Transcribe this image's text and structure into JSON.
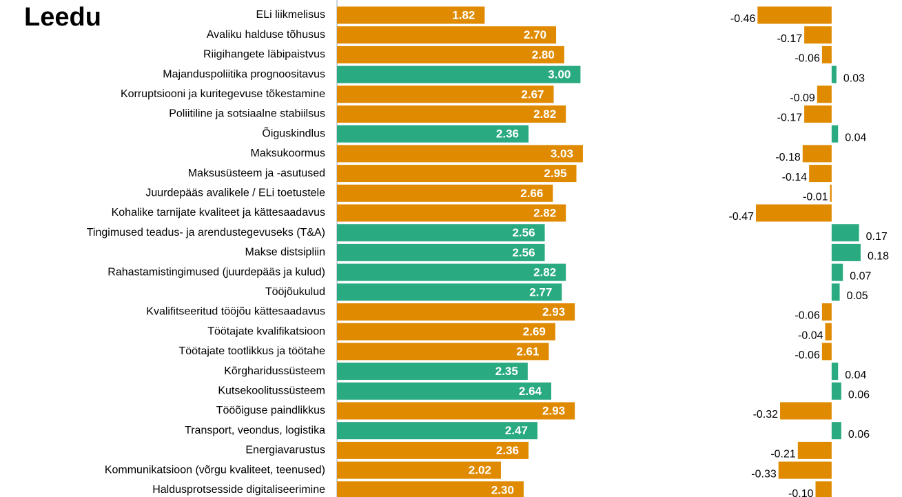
{
  "chart_data": [
    {
      "type": "barh",
      "title": "Leedu",
      "categories": [
        "ELi liikmelisus",
        "Avaliku halduse tõhusus",
        "Riigihangete läbipaistvus",
        "Majanduspoliitika prognoositavus",
        "Korruptsiooni ja kuritegevuse tõkestamine",
        "Poliitiline ja sotsiaalne stabiilsus",
        "Õiguskindlus",
        "Maksukoormus",
        "Maksusüsteem ja -asutused",
        "Juurdepääs avalikele / ELi toetustele",
        "Kohalike tarnijate kvaliteet ja kättesaadavus",
        "Tingimused teadus- ja arendustegevuseks (T&A)",
        "Makse distsipliin",
        "Rahastamistingimused (juurdepääs ja kulud)",
        "Tööjõukulud",
        "Kvalifitseeritud tööjõu kättesaadavus",
        "Töötajate kvalifikatsioon",
        "Töötajate tootlikkus ja töötahe",
        "Kõrgharidussüsteem",
        "Kutsekoolitussüsteem",
        "Tööõiguse paindlikkus",
        "Transport, veondus, logistika",
        "Energiavarustus",
        "Kommunikatsioon (võrgu kvaliteet, teenused)",
        "Haldusprotsesside digitaliseerimine"
      ],
      "values": [
        1.82,
        2.7,
        2.8,
        3.0,
        2.67,
        2.82,
        2.36,
        3.03,
        2.95,
        2.66,
        2.82,
        2.56,
        2.56,
        2.82,
        2.77,
        2.93,
        2.69,
        2.61,
        2.35,
        2.64,
        2.93,
        2.47,
        2.36,
        2.02,
        2.3
      ],
      "value_labels": [
        "1.82",
        "2.70",
        "2.80",
        "3.00",
        "2.67",
        "2.82",
        "2.36",
        "3.03",
        "2.95",
        "2.66",
        "2.82",
        "2.56",
        "2.56",
        "2.82",
        "2.77",
        "2.93",
        "2.69",
        "2.61",
        "2.35",
        "2.64",
        "2.93",
        "2.47",
        "2.36",
        "2.02",
        "2.30"
      ],
      "colors": [
        "#e08a00",
        "#e08a00",
        "#e08a00",
        "#2aaa80",
        "#e08a00",
        "#e08a00",
        "#2aaa80",
        "#e08a00",
        "#e08a00",
        "#e08a00",
        "#e08a00",
        "#2aaa80",
        "#2aaa80",
        "#2aaa80",
        "#2aaa80",
        "#e08a00",
        "#e08a00",
        "#e08a00",
        "#2aaa80",
        "#2aaa80",
        "#e08a00",
        "#2aaa80",
        "#e08a00",
        "#e08a00",
        "#e08a00"
      ],
      "xlim": [
        0,
        3.5
      ]
    },
    {
      "type": "barh",
      "values": [
        -0.46,
        -0.17,
        -0.06,
        0.03,
        -0.09,
        -0.17,
        0.04,
        -0.18,
        -0.14,
        -0.01,
        -0.47,
        0.17,
        0.18,
        0.07,
        0.05,
        -0.06,
        -0.04,
        -0.06,
        0.04,
        0.06,
        -0.32,
        0.06,
        -0.21,
        -0.33,
        -0.1
      ],
      "value_labels": [
        "-0.46",
        "-0.17",
        "-0.06",
        "0.03",
        "-0.09",
        "-0.17",
        "0.04",
        "-0.18",
        "-0.14",
        "-0.01",
        "-0.47",
        "0.17",
        "0.18",
        "0.07",
        "0.05",
        "-0.06",
        "-0.04",
        "-0.06",
        "0.04",
        "0.06",
        "-0.32",
        "0.06",
        "-0.21",
        "-0.33",
        "-0.10"
      ],
      "colors": [
        "#e08a00",
        "#e08a00",
        "#e08a00",
        "#2aaa80",
        "#e08a00",
        "#e08a00",
        "#2aaa80",
        "#e08a00",
        "#e08a00",
        "#e08a00",
        "#e08a00",
        "#2aaa80",
        "#2aaa80",
        "#2aaa80",
        "#2aaa80",
        "#e08a00",
        "#e08a00",
        "#e08a00",
        "#2aaa80",
        "#2aaa80",
        "#e08a00",
        "#2aaa80",
        "#e08a00",
        "#e08a00",
        "#e08a00"
      ],
      "xlim": [
        -0.5,
        0.3
      ]
    }
  ]
}
